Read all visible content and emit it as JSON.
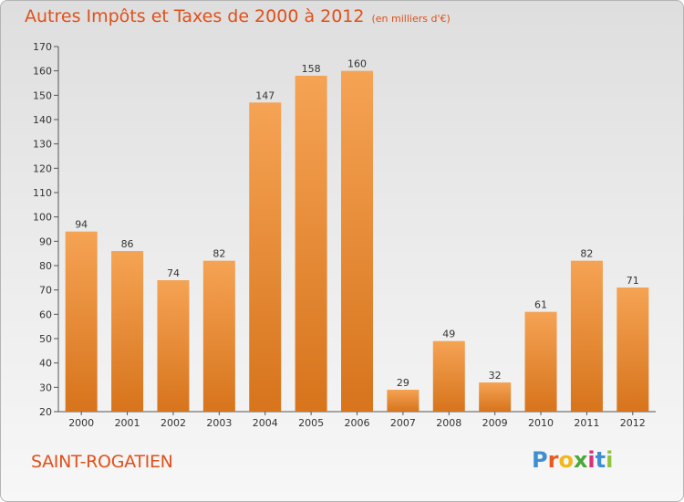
{
  "header": {
    "title": "Autres Impôts et Taxes de 2000 à 2012",
    "unit": "(en milliers d'€)"
  },
  "footer": {
    "city": "SAINT-ROGATIEN",
    "logo_letters": [
      "P",
      "r",
      "o",
      "x",
      "i",
      "t",
      "i"
    ],
    "logo_colors": [
      "#3d8fd4",
      "#e85a1f",
      "#f2b81a",
      "#49a83a",
      "#d9307a",
      "#3d8fd4",
      "#8cc63f"
    ]
  },
  "chart_data": {
    "type": "bar",
    "title": "Autres Impôts et Taxes de 2000 à 2012",
    "subtitle": "(en milliers d'€)",
    "xlabel": "",
    "ylabel": "",
    "categories": [
      "2000",
      "2001",
      "2002",
      "2003",
      "2004",
      "2005",
      "2006",
      "2007",
      "2008",
      "2009",
      "2010",
      "2011",
      "2012"
    ],
    "values": [
      94,
      86,
      74,
      82,
      147,
      158,
      160,
      29,
      49,
      32,
      61,
      82,
      71
    ],
    "ylim": [
      20,
      170
    ],
    "yticks": [
      20,
      30,
      40,
      50,
      60,
      70,
      80,
      90,
      100,
      110,
      120,
      130,
      140,
      150,
      160,
      170
    ],
    "grid": false,
    "bar_color_top": "#f5a354",
    "bar_color_bottom": "#d7741c",
    "data_labels": true
  }
}
